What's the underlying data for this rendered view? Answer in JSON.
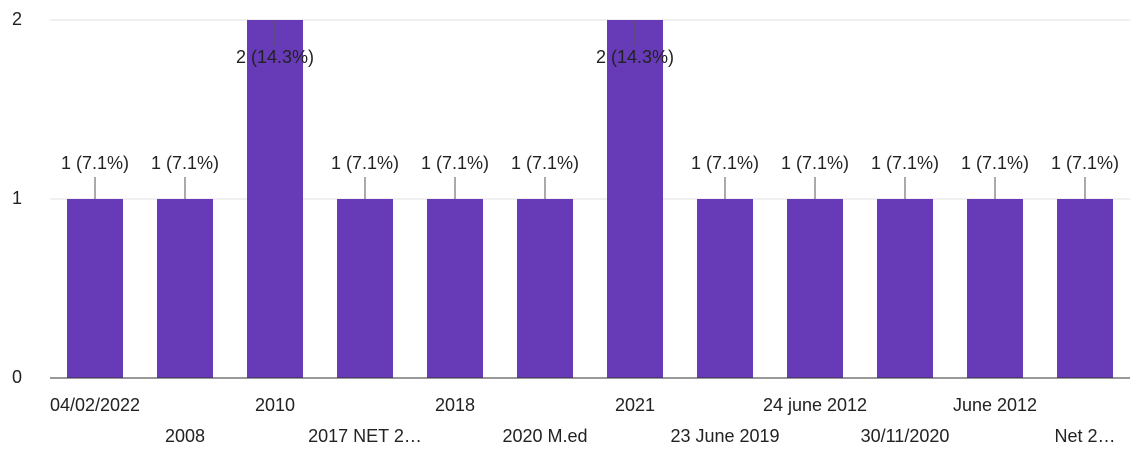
{
  "chart_data": {
    "type": "bar",
    "categories": [
      "04/02/2022",
      "2008",
      "2010",
      "2017 NET 2…",
      "2018",
      "2020 M.ed",
      "2021",
      "23 June 2019",
      "24 june 2012",
      "30/11/2020",
      "June 2012",
      "Net 2…"
    ],
    "values": [
      1,
      1,
      2,
      1,
      1,
      1,
      2,
      1,
      1,
      1,
      1,
      1
    ],
    "value_labels": [
      "1 (7.1%)",
      "1 (7.1%)",
      "2 (14.3%)",
      "1 (7.1%)",
      "1 (7.1%)",
      "1 (7.1%)",
      "2 (14.3%)",
      "1 (7.1%)",
      "1 (7.1%)",
      "1 (7.1%)",
      "1 (7.1%)",
      "1 (7.1%)"
    ],
    "color": "#673ab7",
    "ylim": [
      0,
      2
    ],
    "yticks": [
      0,
      1,
      2
    ],
    "grid": true
  }
}
